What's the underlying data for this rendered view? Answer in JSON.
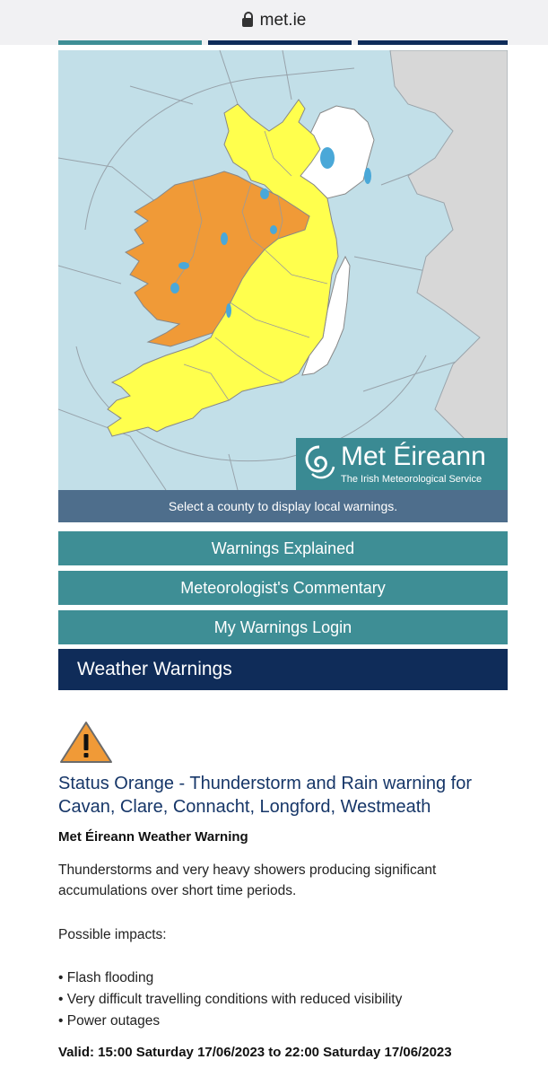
{
  "browser": {
    "url": "met.ie"
  },
  "map": {
    "logo_title": "Met Éireann",
    "logo_subtitle": "The Irish Meteorological Service",
    "select_prompt": "Select a county to display local warnings.",
    "colors": {
      "sea": "#c2dfe8",
      "orange": "#f09a37",
      "yellow": "#ffff4d",
      "land_other": "#d7d7d7",
      "no_warning": "#ffffff",
      "lakes": "#4aa8d8"
    }
  },
  "buttons": {
    "warnings_explained": "Warnings Explained",
    "meteorologists_commentary": "Meteorologist's Commentary",
    "my_warnings_login": "My Warnings Login"
  },
  "section": {
    "title": "Weather Warnings"
  },
  "warning": {
    "icon": "warning-triangle-icon",
    "title": "Status Orange - Thunderstorm and Rain warning for Cavan, Clare, Connacht, Longford, Westmeath",
    "source": "Met Éireann Weather Warning",
    "description": "Thunderstorms and very heavy showers producing significant accumulations over short time periods.",
    "impacts_heading": "Possible impacts:",
    "impacts": [
      "• Flash flooding",
      "• Very difficult travelling conditions with reduced visibility",
      "• Power outages"
    ],
    "valid": "Valid: 15:00 Saturday 17/06/2023 to 22:00 Saturday 17/06/2023"
  }
}
